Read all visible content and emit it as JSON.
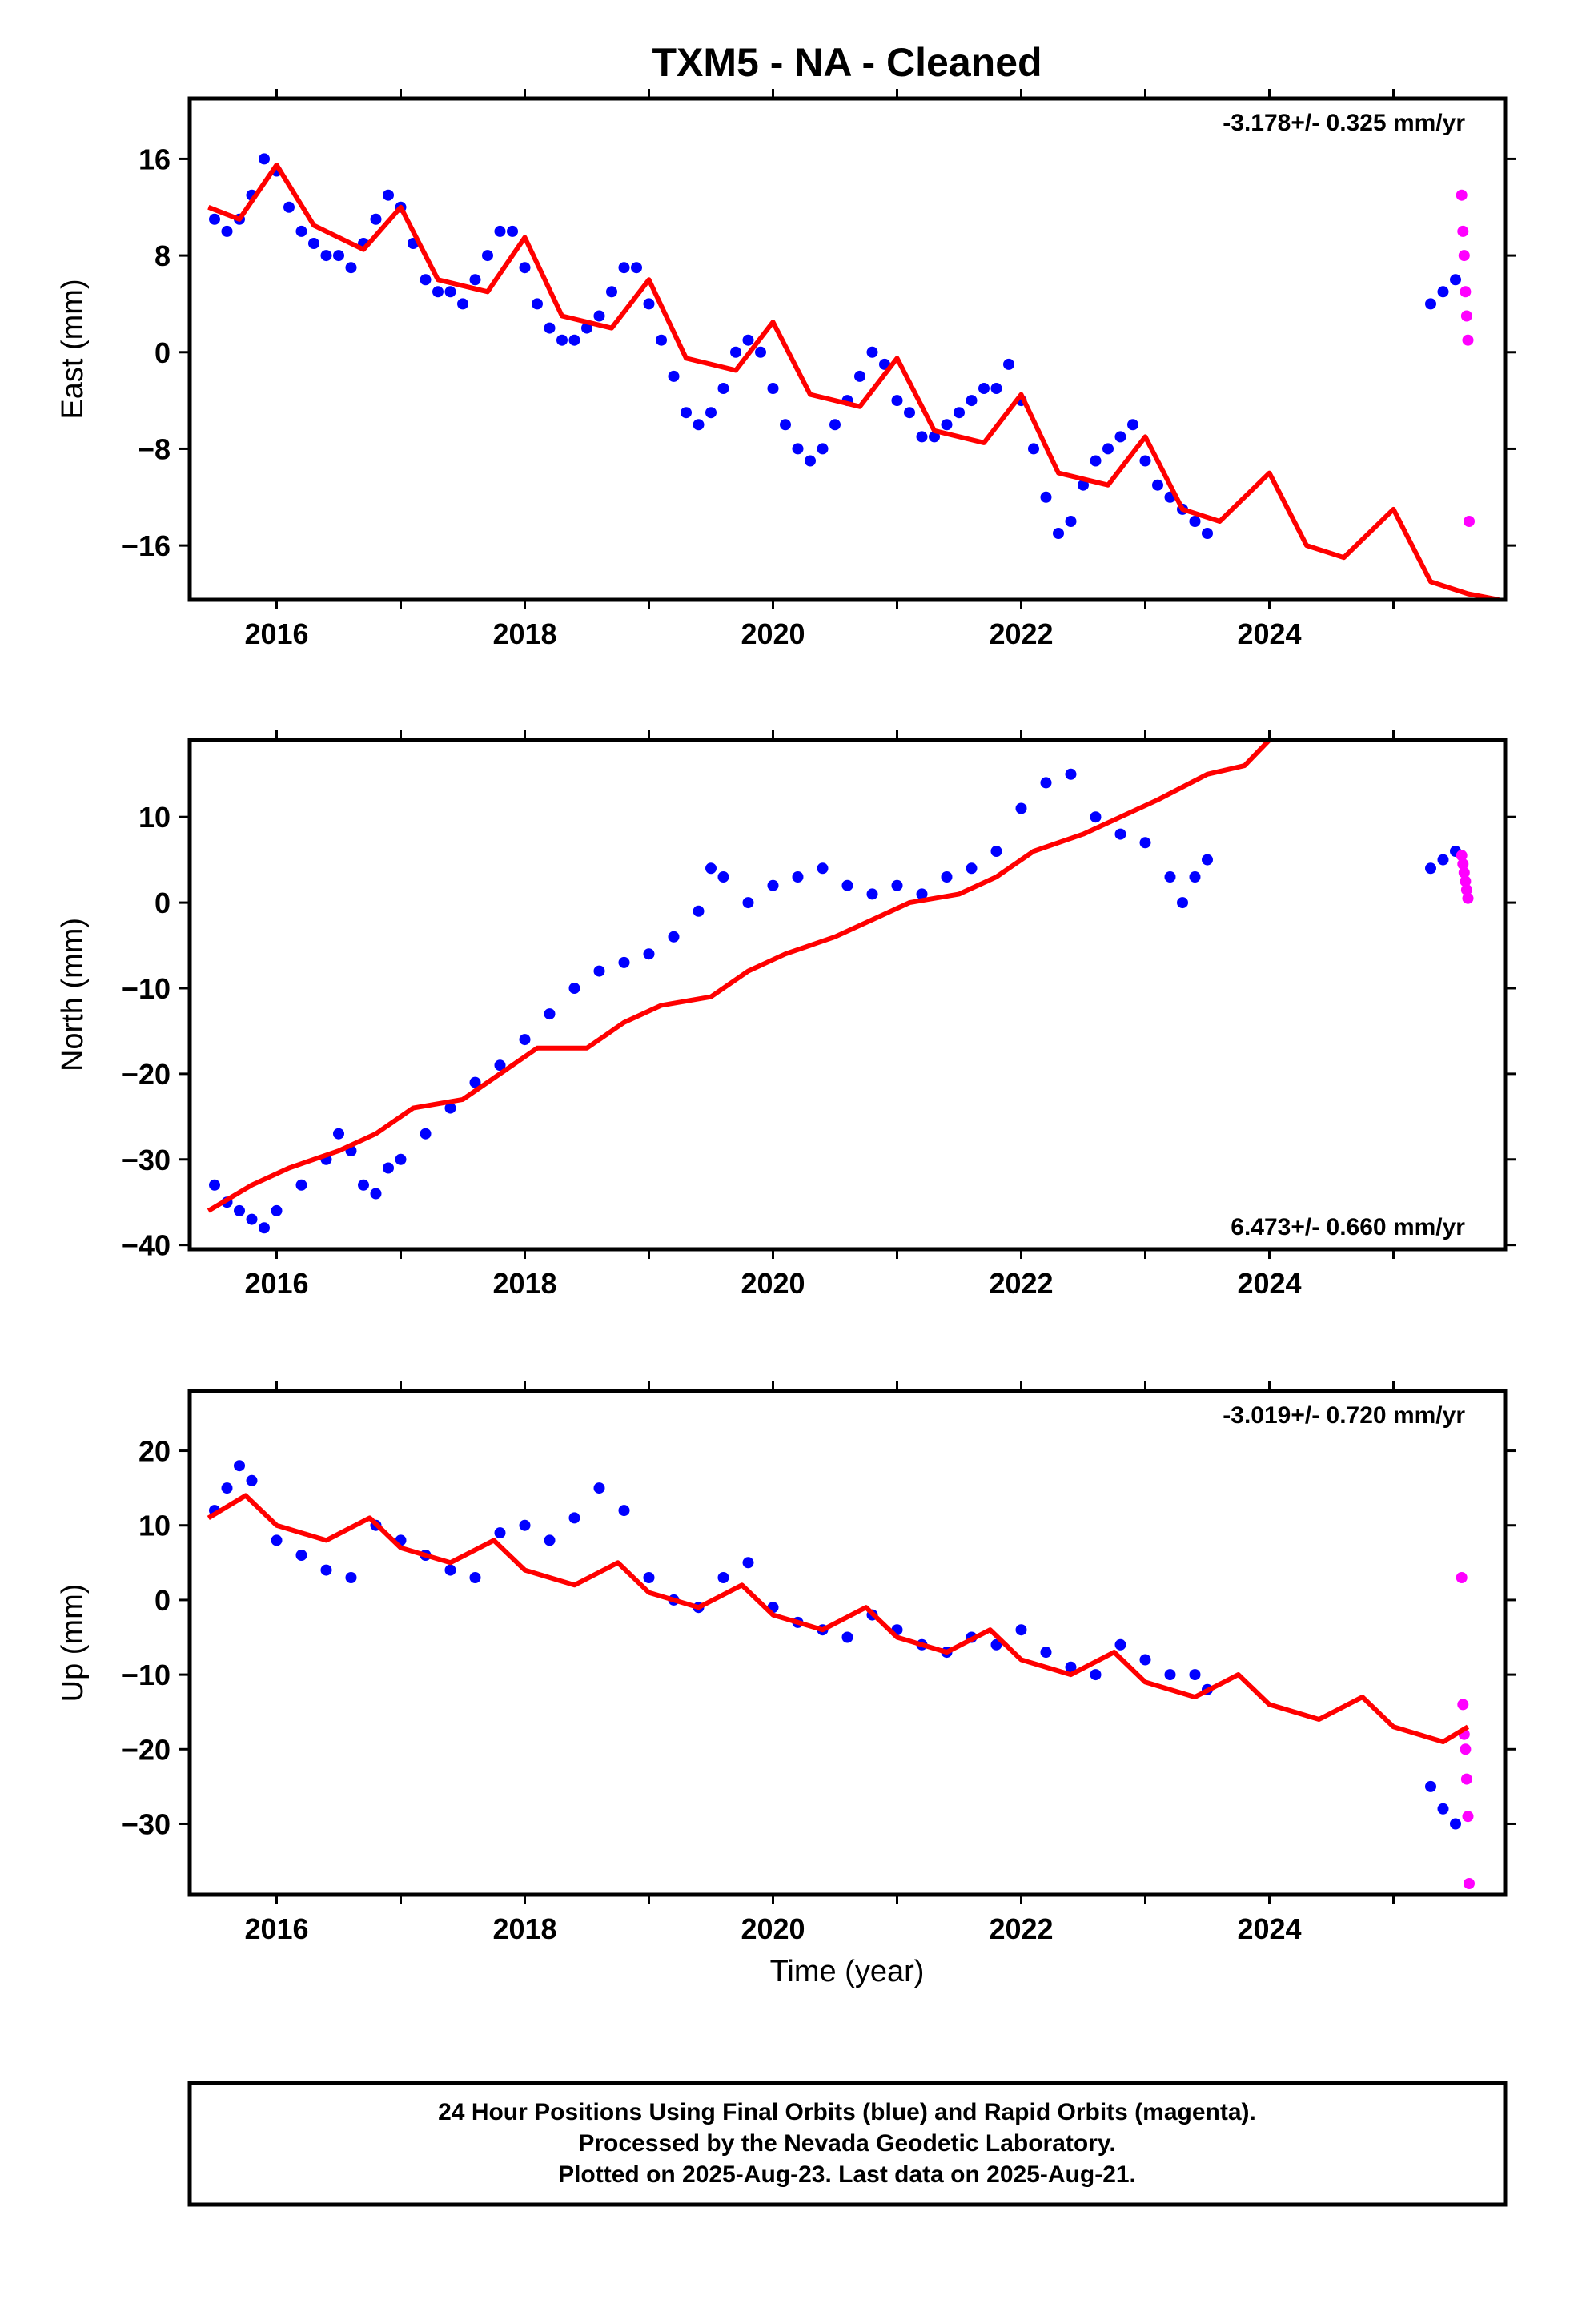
{
  "title": "TXM5  - NA - Cleaned",
  "xlabel": "Time (year)",
  "footer": {
    "line1": "24 Hour Positions Using Final Orbits (blue) and Rapid Orbits (magenta).",
    "line2": "Processed by the Nevada Geodetic Laboratory.",
    "line3": "Plotted on 2025-Aug-23. Last data on 2025-Aug-21."
  },
  "colors": {
    "final": "#0000ff",
    "rapid": "#ff00ff",
    "model": "#ff0000"
  },
  "chart_data": [
    {
      "type": "scatter",
      "ylabel": "East (mm)",
      "rate_text": "-3.178+/- 0.325 mm/yr",
      "xlim": [
        2015.3,
        2025.9
      ],
      "ylim": [
        -20.5,
        21
      ],
      "xticks": [
        2016,
        2018,
        2020,
        2022,
        2024
      ],
      "yticks": [
        -16,
        -8,
        0,
        8,
        16
      ],
      "series": [
        {
          "name": "Final Orbits (blue)",
          "x": [
            2015.5,
            2015.6,
            2015.7,
            2015.8,
            2015.9,
            2016.0,
            2016.1,
            2016.2,
            2016.3,
            2016.4,
            2016.5,
            2016.6,
            2016.7,
            2016.8,
            2016.9,
            2017.0,
            2017.1,
            2017.2,
            2017.3,
            2017.4,
            2017.5,
            2017.6,
            2017.7,
            2017.8,
            2017.9,
            2018.0,
            2018.1,
            2018.2,
            2018.3,
            2018.4,
            2018.5,
            2018.6,
            2018.7,
            2018.8,
            2018.9,
            2019.0,
            2019.1,
            2019.2,
            2019.3,
            2019.4,
            2019.5,
            2019.6,
            2019.7,
            2019.8,
            2019.9,
            2020.0,
            2020.1,
            2020.2,
            2020.3,
            2020.4,
            2020.5,
            2020.6,
            2020.7,
            2020.8,
            2020.9,
            2021.0,
            2021.1,
            2021.2,
            2021.3,
            2021.4,
            2021.5,
            2021.6,
            2021.7,
            2021.8,
            2021.9,
            2022.0,
            2022.1,
            2022.2,
            2022.3,
            2022.4,
            2022.5,
            2022.6,
            2022.7,
            2022.8,
            2022.9,
            2023.0,
            2023.1,
            2023.2,
            2023.3,
            2023.4,
            2023.5,
            2025.3,
            2025.4,
            2025.5
          ],
          "y": [
            11,
            10,
            11,
            13,
            16,
            15,
            12,
            10,
            9,
            8,
            8,
            7,
            9,
            11,
            13,
            12,
            9,
            6,
            5,
            5,
            4,
            6,
            8,
            10,
            10,
            7,
            4,
            2,
            1,
            1,
            2,
            3,
            5,
            7,
            7,
            4,
            1,
            -2,
            -5,
            -6,
            -5,
            -3,
            0,
            1,
            0,
            -3,
            -6,
            -8,
            -9,
            -8,
            -6,
            -4,
            -2,
            0,
            -1,
            -4,
            -5,
            -7,
            -7,
            -6,
            -5,
            -4,
            -3,
            -3,
            -1,
            -4,
            -8,
            -12,
            -15,
            -14,
            -11,
            -9,
            -8,
            -7,
            -6,
            -9,
            -11,
            -12,
            -13,
            -14,
            -15,
            4,
            5,
            6
          ]
        },
        {
          "name": "Rapid Orbits (magenta)",
          "x": [
            2025.55,
            2025.56,
            2025.57,
            2025.58,
            2025.59,
            2025.6,
            2025.61
          ],
          "y": [
            13,
            10,
            8,
            5,
            3,
            1,
            -14
          ]
        }
      ],
      "model": {
        "x": [
          2015.45,
          2015.7,
          2016.0,
          2016.3,
          2016.7,
          2017.0,
          2017.3,
          2017.7,
          2018.0,
          2018.3,
          2018.7,
          2019.0,
          2019.3,
          2019.7,
          2020.0,
          2020.3,
          2020.7,
          2021.0,
          2021.3,
          2021.7,
          2022.0,
          2022.3,
          2022.7,
          2023.0,
          2023.3,
          2023.6,
          2024.0,
          2024.3,
          2024.6,
          2025.0,
          2025.3,
          2025.6,
          2025.85
        ],
        "y": [
          12,
          11,
          15.5,
          10.5,
          8.5,
          12,
          6,
          5,
          9.5,
          3,
          2,
          6,
          -0.5,
          -1.5,
          2.5,
          -3.5,
          -4.5,
          -0.5,
          -6.5,
          -7.5,
          -3.5,
          -10,
          -11,
          -7,
          -13,
          -14,
          -10,
          -16,
          -17,
          -13,
          -19,
          -20,
          -20.5
        ]
      }
    },
    {
      "type": "scatter",
      "ylabel": "North (mm)",
      "rate_text": "6.473+/- 0.660 mm/yr",
      "xlim": [
        2015.3,
        2025.9
      ],
      "ylim": [
        -40.5,
        19
      ],
      "xticks": [
        2016,
        2018,
        2020,
        2022,
        2024
      ],
      "yticks": [
        -40,
        -30,
        -20,
        -10,
        0,
        10
      ],
      "series": [
        {
          "name": "Final Orbits (blue)",
          "x": [
            2015.5,
            2015.6,
            2015.7,
            2015.8,
            2015.9,
            2016.0,
            2016.2,
            2016.4,
            2016.5,
            2016.6,
            2016.7,
            2016.8,
            2016.9,
            2017.0,
            2017.2,
            2017.4,
            2017.6,
            2017.8,
            2018.0,
            2018.2,
            2018.4,
            2018.6,
            2018.8,
            2019.0,
            2019.2,
            2019.4,
            2019.5,
            2019.6,
            2019.8,
            2020.0,
            2020.2,
            2020.4,
            2020.6,
            2020.8,
            2021.0,
            2021.2,
            2021.4,
            2021.6,
            2021.8,
            2022.0,
            2022.2,
            2022.4,
            2022.6,
            2022.8,
            2023.0,
            2023.2,
            2023.3,
            2023.4,
            2023.5,
            2025.3,
            2025.4,
            2025.5
          ],
          "y": [
            -33,
            -35,
            -36,
            -37,
            -38,
            -36,
            -33,
            -30,
            -27,
            -29,
            -33,
            -34,
            -31,
            -30,
            -27,
            -24,
            -21,
            -19,
            -16,
            -13,
            -10,
            -8,
            -7,
            -6,
            -4,
            -1,
            4,
            3,
            0,
            2,
            3,
            4,
            2,
            1,
            2,
            1,
            3,
            4,
            6,
            11,
            14,
            15,
            10,
            8,
            7,
            3,
            0,
            3,
            5,
            4,
            5,
            6
          ]
        },
        {
          "name": "Rapid Orbits (magenta)",
          "x": [
            2025.55,
            2025.56,
            2025.57,
            2025.58,
            2025.59,
            2025.6
          ],
          "y": [
            5.5,
            4.5,
            3.5,
            2.5,
            1.5,
            0.5
          ]
        }
      ],
      "model": {
        "x": [
          2015.45,
          2015.8,
          2016.1,
          2016.5,
          2016.8,
          2017.1,
          2017.5,
          2017.8,
          2018.1,
          2018.5,
          2018.8,
          2019.1,
          2019.5,
          2019.8,
          2020.1,
          2020.5,
          2020.8,
          2021.1,
          2021.5,
          2021.8,
          2022.1,
          2022.5,
          2022.8,
          2023.1,
          2023.5,
          2023.8,
          2024.0
        ],
        "y": [
          -36,
          -33,
          -31,
          -29,
          -27,
          -24,
          -23,
          -20,
          -17,
          -17,
          -14,
          -12,
          -11,
          -8,
          -6,
          -4,
          -2,
          0,
          1,
          3,
          6,
          8,
          10,
          12,
          15,
          16,
          19
        ]
      }
    },
    {
      "type": "scatter",
      "ylabel": "Up (mm)",
      "xlabel": "Time (year)",
      "rate_text": "-3.019+/- 0.720 mm/yr",
      "xlim": [
        2015.3,
        2025.9
      ],
      "ylim": [
        -39.5,
        28
      ],
      "xticks": [
        2016,
        2018,
        2020,
        2022,
        2024
      ],
      "yticks": [
        -30,
        -20,
        -10,
        0,
        10,
        20
      ],
      "series": [
        {
          "name": "Final Orbits (blue)",
          "x": [
            2015.5,
            2015.6,
            2015.7,
            2015.8,
            2016.0,
            2016.2,
            2016.4,
            2016.6,
            2016.8,
            2017.0,
            2017.2,
            2017.4,
            2017.6,
            2017.8,
            2018.0,
            2018.2,
            2018.4,
            2018.6,
            2018.8,
            2019.0,
            2019.2,
            2019.4,
            2019.6,
            2019.8,
            2020.0,
            2020.2,
            2020.4,
            2020.6,
            2020.8,
            2021.0,
            2021.2,
            2021.4,
            2021.6,
            2021.8,
            2022.0,
            2022.2,
            2022.4,
            2022.6,
            2022.8,
            2023.0,
            2023.2,
            2023.4,
            2023.5,
            2025.3,
            2025.4,
            2025.5
          ],
          "y": [
            12,
            15,
            18,
            16,
            8,
            6,
            4,
            3,
            10,
            8,
            6,
            4,
            3,
            9,
            10,
            8,
            11,
            15,
            12,
            3,
            0,
            -1,
            3,
            5,
            -1,
            -3,
            -4,
            -5,
            -2,
            -4,
            -6,
            -7,
            -5,
            -6,
            -4,
            -7,
            -9,
            -10,
            -6,
            -8,
            -10,
            -10,
            -12,
            -25,
            -28,
            -30
          ]
        },
        {
          "name": "Rapid Orbits (magenta)",
          "x": [
            2025.55,
            2025.56,
            2025.57,
            2025.58,
            2025.59,
            2025.6,
            2025.61
          ],
          "y": [
            3,
            -14,
            -18,
            -20,
            -24,
            -29,
            -38
          ]
        }
      ],
      "model": {
        "x": [
          2015.45,
          2015.75,
          2016.0,
          2016.4,
          2016.75,
          2017.0,
          2017.4,
          2017.75,
          2018.0,
          2018.4,
          2018.75,
          2019.0,
          2019.4,
          2019.75,
          2020.0,
          2020.4,
          2020.75,
          2021.0,
          2021.4,
          2021.75,
          2022.0,
          2022.4,
          2022.75,
          2023.0,
          2023.4,
          2023.75,
          2024.0,
          2024.4,
          2024.75,
          2025.0,
          2025.4,
          2025.6
        ],
        "y": [
          11,
          14,
          10,
          8,
          11,
          7,
          5,
          8,
          4,
          2,
          5,
          1,
          -1,
          2,
          -2,
          -4,
          -1,
          -5,
          -7,
          -4,
          -8,
          -10,
          -7,
          -11,
          -13,
          -10,
          -14,
          -16,
          -13,
          -17,
          -19,
          -17
        ]
      }
    }
  ]
}
